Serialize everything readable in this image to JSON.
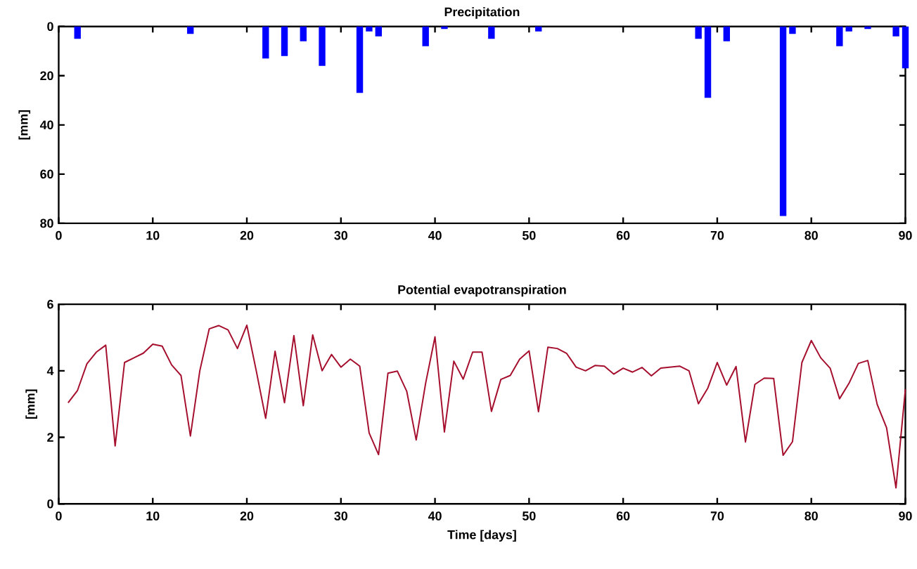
{
  "chart_data": [
    {
      "type": "bar",
      "title": "Precipitation",
      "ylabel": "[mm]",
      "color": "#0000ff",
      "x": [
        2,
        14,
        22,
        24,
        26,
        28,
        32,
        33,
        34,
        39,
        41,
        46,
        51,
        68,
        69,
        71,
        77,
        78,
        83,
        84,
        86,
        89,
        90
      ],
      "values": [
        5,
        3,
        13,
        12,
        6,
        16,
        27,
        2,
        4,
        8,
        1,
        5,
        2,
        5,
        29,
        6,
        77,
        3,
        8,
        2,
        1,
        4,
        17
      ],
      "xlim": [
        0,
        90
      ],
      "ylim": [
        80,
        0
      ],
      "xticks": [
        0,
        10,
        20,
        30,
        40,
        50,
        60,
        70,
        80,
        90
      ],
      "yticks": [
        0,
        20,
        40,
        60,
        80
      ],
      "grid": false
    },
    {
      "type": "line",
      "title": "Potential evapotranspiration",
      "xlabel": "Time [days]",
      "ylabel": "[mm]",
      "color": "#a50f2d",
      "x": [
        1,
        2,
        3,
        4,
        5,
        6,
        7,
        8,
        9,
        10,
        11,
        12,
        13,
        14,
        15,
        16,
        17,
        18,
        19,
        20,
        21,
        22,
        23,
        24,
        25,
        26,
        27,
        28,
        29,
        30,
        31,
        32,
        33,
        34,
        35,
        36,
        37,
        38,
        39,
        40,
        41,
        42,
        43,
        44,
        45,
        46,
        47,
        48,
        49,
        50,
        51,
        52,
        53,
        54,
        55,
        56,
        57,
        58,
        59,
        60,
        61,
        62,
        63,
        64,
        65,
        66,
        67,
        68,
        69,
        70,
        71,
        72,
        73,
        74,
        75,
        76,
        77,
        78,
        79,
        80,
        81,
        82,
        83,
        84,
        85,
        86,
        87,
        88,
        89,
        90
      ],
      "values": [
        3.04,
        3.41,
        4.21,
        4.56,
        4.77,
        1.74,
        4.25,
        4.39,
        4.53,
        4.8,
        4.74,
        4.18,
        3.86,
        2.04,
        4.0,
        5.26,
        5.36,
        5.23,
        4.67,
        5.37,
        4.0,
        2.57,
        4.59,
        3.04,
        5.06,
        2.95,
        5.08,
        4.0,
        4.49,
        4.11,
        4.35,
        4.14,
        2.13,
        1.48,
        3.93,
        3.99,
        3.38,
        1.92,
        3.62,
        5.02,
        2.16,
        4.29,
        3.75,
        4.56,
        4.56,
        2.78,
        3.74,
        3.86,
        4.35,
        4.6,
        2.77,
        4.71,
        4.67,
        4.52,
        4.11,
        4.0,
        4.16,
        4.14,
        3.9,
        4.08,
        3.96,
        4.1,
        3.85,
        4.08,
        4.11,
        4.14,
        4.0,
        3.01,
        3.48,
        4.25,
        3.57,
        4.13,
        1.86,
        3.59,
        3.78,
        3.77,
        1.46,
        1.87,
        4.25,
        4.91,
        4.39,
        4.08,
        3.16,
        3.62,
        4.22,
        4.31,
        2.99,
        2.29,
        0.48,
        3.45
      ],
      "xlim": [
        0,
        90
      ],
      "ylim": [
        0,
        6
      ],
      "xticks": [
        0,
        10,
        20,
        30,
        40,
        50,
        60,
        70,
        80,
        90
      ],
      "yticks": [
        0,
        2,
        4,
        6
      ],
      "grid": false,
      "marker": "none",
      "line_style": "solid"
    }
  ]
}
